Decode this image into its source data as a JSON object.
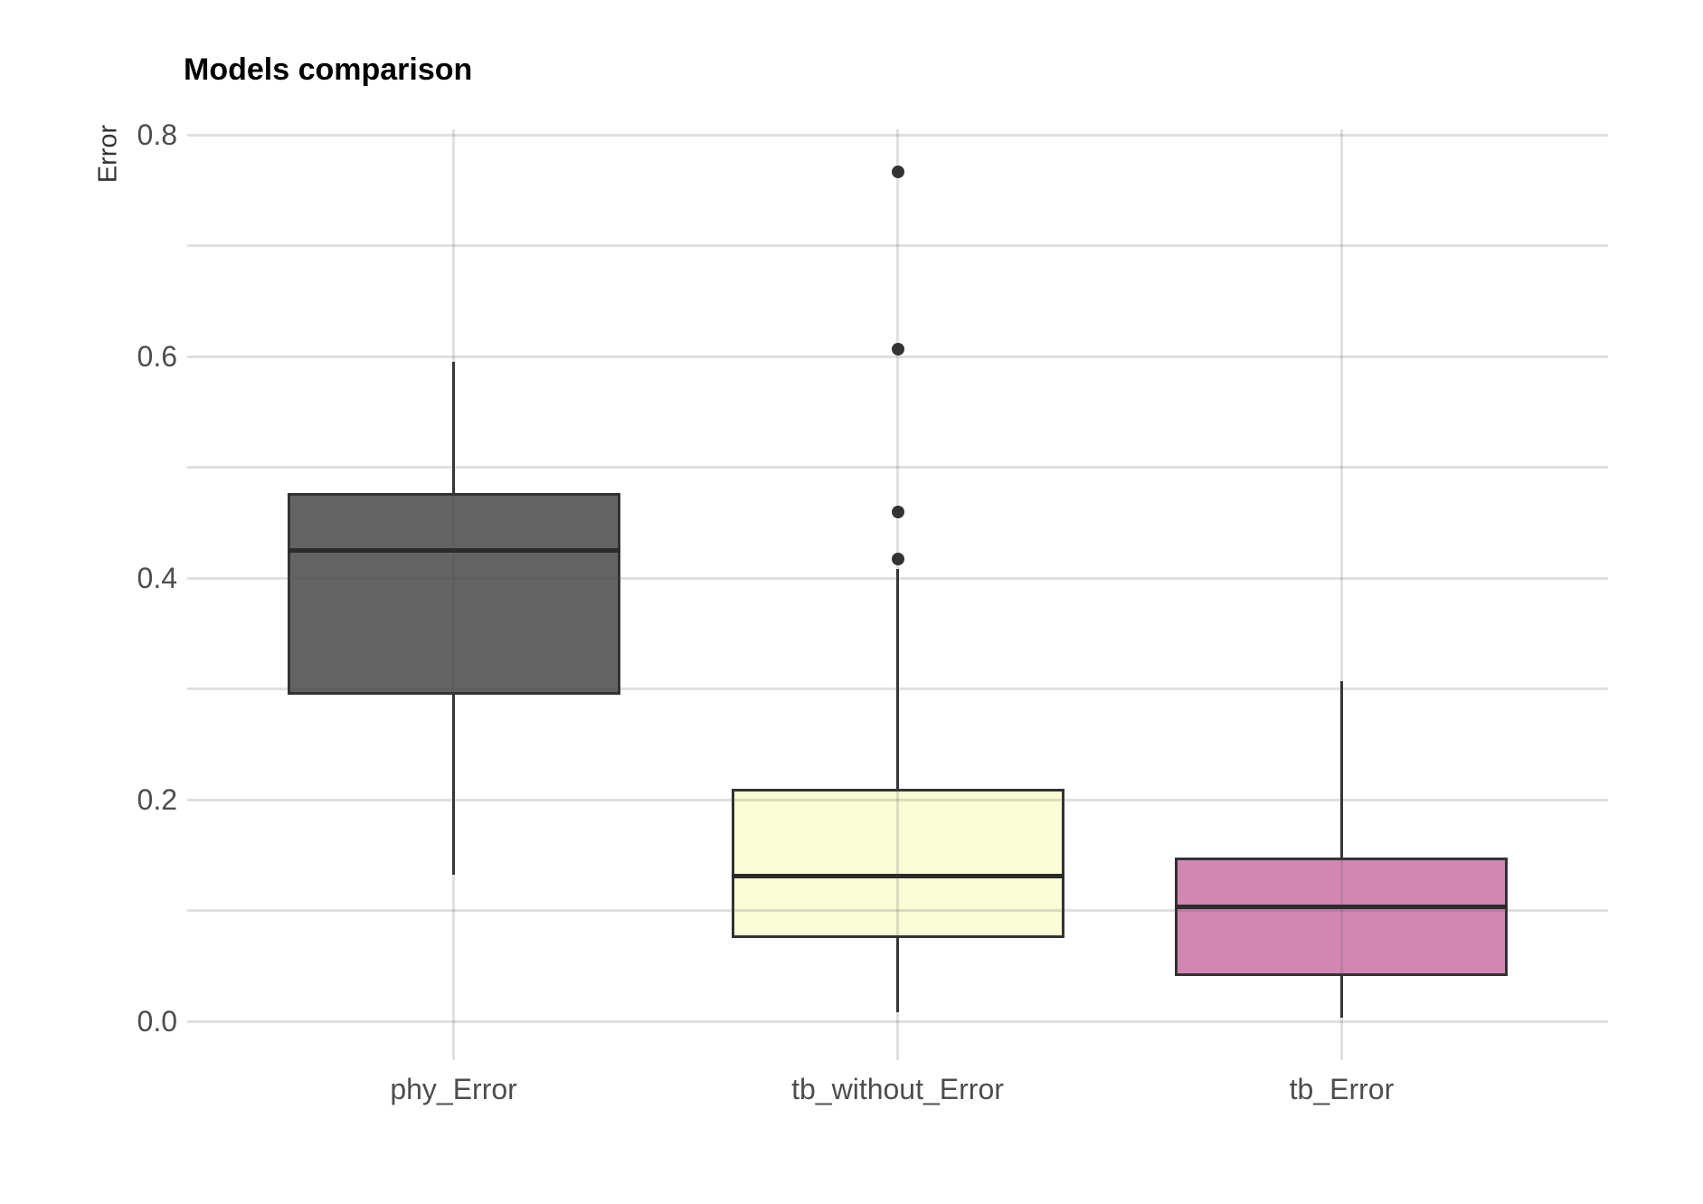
{
  "title": "Models comparison",
  "chart_data": {
    "type": "boxplot",
    "title": "Models comparison",
    "ylabel": "Error",
    "xlabel": "",
    "categories": [
      "phy_Error",
      "tb_without_Error",
      "tb_Error"
    ],
    "y_tick_labels": [
      "0.0",
      "0.2",
      "0.4",
      "0.6",
      "0.8"
    ],
    "y_tick_values": [
      0.0,
      0.2,
      0.4,
      0.6,
      0.8
    ],
    "y_minor_tick_values": [
      0.1,
      0.3,
      0.5,
      0.7
    ],
    "ylim": [
      -0.035,
      0.805
    ],
    "grid": true,
    "legend": "none",
    "series": [
      {
        "name": "phy_Error",
        "fill": "#646464",
        "whisker_low": 0.132,
        "q1": 0.295,
        "median": 0.425,
        "q3": 0.477,
        "whisker_high": 0.595,
        "outliers": []
      },
      {
        "name": "tb_without_Error",
        "fill": "#FBFBD5",
        "whisker_low": 0.008,
        "q1": 0.075,
        "median": 0.131,
        "q3": 0.21,
        "whisker_high": 0.408,
        "outliers": [
          0.417,
          0.46,
          0.607,
          0.767
        ]
      },
      {
        "name": "tb_Error",
        "fill": "#D287B2",
        "whisker_low": 0.003,
        "q1": 0.041,
        "median": 0.103,
        "q3": 0.148,
        "whisker_high": 0.307,
        "outliers": []
      }
    ],
    "style": {
      "stroke": "#333333",
      "median_color": "#2b2b2b",
      "grid_color": "#d9d9d9",
      "axis_text_color": "#4d4d4d",
      "title_color": "#000000",
      "background": "#ffffff"
    }
  }
}
